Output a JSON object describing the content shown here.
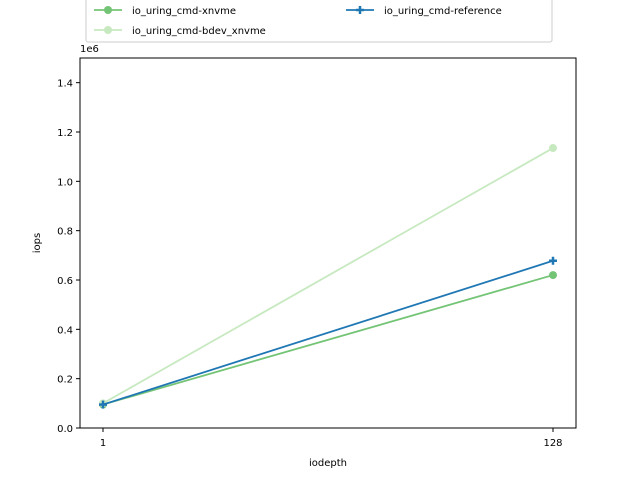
{
  "chart_data": {
    "type": "line",
    "x": [
      1,
      128
    ],
    "xlabel": "iodepth",
    "ylabel": "iops",
    "y_offset_label": "1e6",
    "ylim": [
      0,
      1500000
    ],
    "yticks": [
      0,
      200000,
      400000,
      600000,
      800000,
      1000000,
      1200000,
      1400000
    ],
    "ytick_labels": [
      "0.0",
      "0.2",
      "0.4",
      "0.6",
      "0.8",
      "1.0",
      "1.2",
      "1.4"
    ],
    "xtick_labels": [
      "1",
      "128"
    ],
    "grid": false,
    "legend_position": "top-center",
    "series": [
      {
        "name": "io_uring_cmd-xnvme",
        "values": [
          95000,
          620000
        ],
        "color": "#74c476",
        "marker": "circle"
      },
      {
        "name": "io_uring_cmd-bdev_xnvme",
        "values": [
          100000,
          1135000
        ],
        "color": "#c7e9c0",
        "marker": "circle"
      },
      {
        "name": "io_uring_cmd-reference",
        "values": [
          95000,
          678000
        ],
        "color": "#1f77b4",
        "marker": "plus"
      }
    ]
  }
}
